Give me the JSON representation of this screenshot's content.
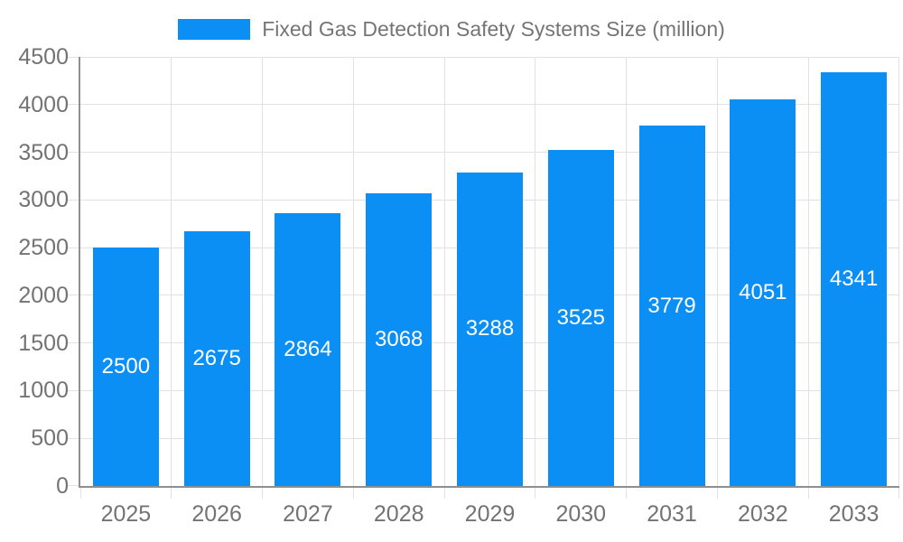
{
  "legend": {
    "label": "Fixed Gas Detection Safety Systems Size (million)"
  },
  "chart_data": {
    "type": "bar",
    "title": "Fixed Gas Detection Safety Systems Size (million)",
    "series_name": "Fixed Gas Detection Safety Systems Size (million)",
    "categories": [
      "2025",
      "2026",
      "2027",
      "2028",
      "2029",
      "2030",
      "2031",
      "2032",
      "2033"
    ],
    "values": [
      2500,
      2675,
      2864,
      3068,
      3288,
      3525,
      3779,
      4051,
      4341
    ],
    "value_labels": [
      "2500",
      "2675",
      "2864",
      "3068",
      "3288",
      "3525",
      "3779",
      "4051",
      "4341"
    ],
    "xlabel": "",
    "ylabel": "",
    "ylim": [
      0,
      4500
    ],
    "y_tick_step": 500,
    "y_tick_labels": [
      "0",
      "500",
      "1000",
      "1500",
      "2000",
      "2500",
      "3000",
      "3500",
      "4000",
      "4500"
    ],
    "grid": true,
    "legend_position": "top",
    "colors": {
      "bar": "#0b8ff5",
      "value_label": "#ffffff",
      "axis_text": "#737373",
      "legend_text": "#757575",
      "grid_line": "#e2e2e2",
      "axis_line": "#8f8f8f"
    }
  }
}
